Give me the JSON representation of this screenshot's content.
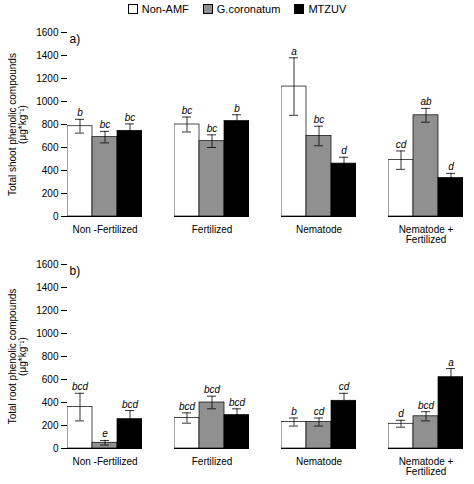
{
  "chart_data": [
    {
      "type": "bar",
      "annotations": [
        "a)"
      ],
      "ylabel": "Total shoot phenolic compounds\n(μg*kg⁻¹)",
      "categories": [
        "Non -Fertilized",
        "Fertilized",
        "Nematode",
        "Nematode +\nFertilized"
      ],
      "series": [
        {
          "name": "Non-AMF",
          "color": "white",
          "values": [
            785,
            800,
            1130,
            490
          ],
          "errors": [
            60,
            65,
            250,
            80
          ],
          "labels": [
            "b",
            "bc",
            "a",
            "cd"
          ]
        },
        {
          "name": "G.coronatum",
          "color": "#909090",
          "values": [
            690,
            655,
            700,
            880
          ],
          "errors": [
            50,
            55,
            85,
            60
          ],
          "labels": [
            "bc",
            "bc",
            "bc",
            "ab"
          ]
        },
        {
          "name": "MTZUV",
          "color": "black",
          "values": [
            745,
            830,
            460,
            335
          ],
          "errors": [
            60,
            55,
            55,
            40
          ],
          "labels": [
            "bc",
            "b",
            "d",
            "d"
          ]
        }
      ],
      "ylim": [
        0,
        1600
      ],
      "yticks": [
        0,
        200,
        400,
        600,
        800,
        1000,
        1200,
        1400,
        1600
      ],
      "grid": false,
      "legend": "top"
    },
    {
      "type": "bar",
      "annotations": [
        "b)"
      ],
      "ylabel": "Total root phenolic compounds\n(μg*kg⁻¹)",
      "categories": [
        "Non -Fertilized",
        "Fertilized",
        "Nematode",
        "Nematode +\nFertilized"
      ],
      "series": [
        {
          "name": "Non-AMF",
          "color": "white",
          "values": [
            360,
            265,
            230,
            215
          ],
          "errors": [
            120,
            45,
            35,
            30
          ],
          "labels": [
            "bcd",
            "bcd",
            "b",
            "d"
          ]
        },
        {
          "name": "G.coronatum",
          "color": "#909090",
          "values": [
            50,
            400,
            230,
            280
          ],
          "errors": [
            20,
            55,
            35,
            40
          ],
          "labels": [
            "e",
            "bcd",
            "cd",
            "bcd"
          ]
        },
        {
          "name": "MTZUV",
          "color": "black",
          "values": [
            255,
            290,
            415,
            620
          ],
          "errors": [
            75,
            55,
            65,
            75
          ],
          "labels": [
            "bcd",
            "bcd",
            "cd",
            "a"
          ]
        }
      ],
      "ylim": [
        0,
        1600
      ],
      "yticks": [
        0,
        200,
        400,
        600,
        800,
        1000,
        1200,
        1400,
        1600
      ],
      "grid": false
    }
  ]
}
